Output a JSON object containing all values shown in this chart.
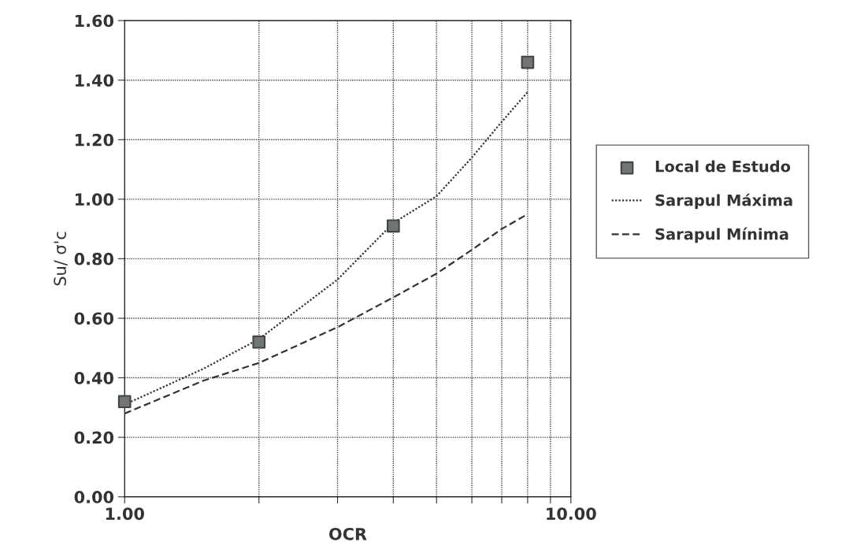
{
  "chart_data": {
    "type": "line",
    "xlabel": "OCR",
    "ylabel": "Su/ σ'c",
    "log": "x",
    "xlim": [
      1,
      10
    ],
    "xticks": [
      {
        "value": 1,
        "label": "1.00"
      },
      {
        "value": 2,
        "label": null
      },
      {
        "value": 3,
        "label": null
      },
      {
        "value": 4,
        "label": null
      },
      {
        "value": 5,
        "label": null
      },
      {
        "value": 6,
        "label": null
      },
      {
        "value": 7,
        "label": null
      },
      {
        "value": 8,
        "label": null
      },
      {
        "value": 9,
        "label": null
      },
      {
        "value": 10,
        "label": "10.00"
      }
    ],
    "ylim": [
      0,
      1.6
    ],
    "yticks": [
      {
        "value": 0,
        "label": "0.00"
      },
      {
        "value": 0.2,
        "label": "0.20"
      },
      {
        "value": 0.4,
        "label": "0.40"
      },
      {
        "value": 0.6,
        "label": "0.60"
      },
      {
        "value": 0.8,
        "label": "0.80"
      },
      {
        "value": 1.0,
        "label": "1.00"
      },
      {
        "value": 1.2,
        "label": "1.20"
      },
      {
        "value": 1.4,
        "label": "1.40"
      },
      {
        "value": 1.6,
        "label": "1.60"
      }
    ],
    "grid": true,
    "legend": "right",
    "series": [
      {
        "name": "Local de Estudo",
        "type": "scatter",
        "marker": "square",
        "color": "#6e7678",
        "x": [
          1,
          2,
          4,
          8
        ],
        "values": [
          0.32,
          0.52,
          0.91,
          1.46
        ]
      },
      {
        "name": "Sarapul Máxima",
        "line_style": "dotted",
        "color": "#333333",
        "x": [
          1,
          1.5,
          2,
          3,
          4,
          5,
          6,
          7,
          8
        ],
        "values": [
          0.31,
          0.43,
          0.53,
          0.73,
          0.92,
          1.01,
          1.14,
          1.26,
          1.36
        ]
      },
      {
        "name": "Sarapul Mínima",
        "line_style": "dashed",
        "color": "#333333",
        "x": [
          1,
          1.5,
          2,
          3,
          4,
          5,
          6,
          7,
          8
        ],
        "values": [
          0.28,
          0.39,
          0.45,
          0.57,
          0.67,
          0.75,
          0.83,
          0.9,
          0.95
        ]
      }
    ]
  }
}
